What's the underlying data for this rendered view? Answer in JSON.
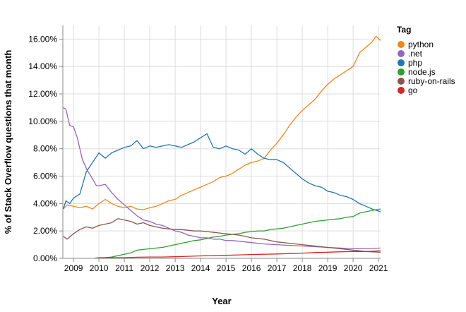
{
  "chart_data": {
    "type": "line",
    "xlabel": "Year",
    "ylabel": "% of Stack Overflow questions that month",
    "x_ticks": [
      "2009",
      "2010",
      "2011",
      "2012",
      "2013",
      "2014",
      "2015",
      "2016",
      "2017",
      "2018",
      "2019",
      "2020",
      "2021"
    ],
    "y_ticks": [
      "0.00%",
      "2.00%",
      "4.00%",
      "6.00%",
      "8.00%",
      "10.00%",
      "12.00%",
      "14.00%",
      "16.00%"
    ],
    "xlim": [
      2008.58,
      2021.08
    ],
    "ylim": [
      0,
      17
    ],
    "grid": true,
    "legend_title": "Tag",
    "legend_position": "right",
    "series": [
      {
        "name": "python",
        "color": "#f58518",
        "points": [
          [
            2008.6,
            3.6
          ],
          [
            2008.75,
            3.9
          ],
          [
            2009.0,
            3.8
          ],
          [
            2009.25,
            3.7
          ],
          [
            2009.5,
            3.8
          ],
          [
            2009.75,
            3.6
          ],
          [
            2010.0,
            4.0
          ],
          [
            2010.25,
            4.3
          ],
          [
            2010.5,
            4.0
          ],
          [
            2010.75,
            3.8
          ],
          [
            2011.0,
            3.7
          ],
          [
            2011.25,
            3.8
          ],
          [
            2011.5,
            3.6
          ],
          [
            2011.75,
            3.55
          ],
          [
            2012.0,
            3.7
          ],
          [
            2012.25,
            3.8
          ],
          [
            2012.5,
            4.0
          ],
          [
            2012.75,
            4.2
          ],
          [
            2013.0,
            4.3
          ],
          [
            2013.25,
            4.6
          ],
          [
            2013.5,
            4.8
          ],
          [
            2013.75,
            5.0
          ],
          [
            2014.0,
            5.2
          ],
          [
            2014.25,
            5.4
          ],
          [
            2014.5,
            5.6
          ],
          [
            2014.75,
            5.9
          ],
          [
            2015.0,
            6.0
          ],
          [
            2015.25,
            6.2
          ],
          [
            2015.5,
            6.5
          ],
          [
            2015.75,
            6.8
          ],
          [
            2016.0,
            7.0
          ],
          [
            2016.25,
            7.1
          ],
          [
            2016.5,
            7.3
          ],
          [
            2016.75,
            7.9
          ],
          [
            2017.0,
            8.4
          ],
          [
            2017.25,
            9.0
          ],
          [
            2017.5,
            9.7
          ],
          [
            2017.75,
            10.3
          ],
          [
            2018.0,
            10.8
          ],
          [
            2018.25,
            11.2
          ],
          [
            2018.5,
            11.6
          ],
          [
            2018.75,
            12.2
          ],
          [
            2019.0,
            12.7
          ],
          [
            2019.25,
            13.1
          ],
          [
            2019.5,
            13.4
          ],
          [
            2019.75,
            13.7
          ],
          [
            2020.0,
            14.0
          ],
          [
            2020.25,
            15.0
          ],
          [
            2020.5,
            15.4
          ],
          [
            2020.75,
            15.8
          ],
          [
            2020.9,
            16.2
          ],
          [
            2021.08,
            15.9
          ]
        ]
      },
      {
        "name": ".net",
        "color": "#9467bd",
        "points": [
          [
            2008.6,
            11.0
          ],
          [
            2008.7,
            10.9
          ],
          [
            2008.85,
            9.7
          ],
          [
            2009.0,
            9.6
          ],
          [
            2009.15,
            8.8
          ],
          [
            2009.35,
            7.2
          ],
          [
            2009.55,
            6.4
          ],
          [
            2009.75,
            5.8
          ],
          [
            2009.9,
            5.3
          ],
          [
            2010.0,
            5.3
          ],
          [
            2010.25,
            5.4
          ],
          [
            2010.5,
            4.8
          ],
          [
            2010.75,
            4.3
          ],
          [
            2011.0,
            3.9
          ],
          [
            2011.25,
            3.5
          ],
          [
            2011.5,
            3.1
          ],
          [
            2011.75,
            2.8
          ],
          [
            2012.0,
            2.7
          ],
          [
            2012.25,
            2.5
          ],
          [
            2012.5,
            2.4
          ],
          [
            2012.75,
            2.2
          ],
          [
            2013.0,
            2.0
          ],
          [
            2013.25,
            1.9
          ],
          [
            2013.5,
            1.7
          ],
          [
            2013.75,
            1.6
          ],
          [
            2014.0,
            1.5
          ],
          [
            2014.25,
            1.5
          ],
          [
            2014.5,
            1.4
          ],
          [
            2014.75,
            1.4
          ],
          [
            2015.0,
            1.3
          ],
          [
            2015.25,
            1.3
          ],
          [
            2015.5,
            1.25
          ],
          [
            2015.75,
            1.2
          ],
          [
            2016.0,
            1.15
          ],
          [
            2016.5,
            1.05
          ],
          [
            2017.0,
            1.0
          ],
          [
            2017.5,
            0.95
          ],
          [
            2018.0,
            0.9
          ],
          [
            2018.5,
            0.85
          ],
          [
            2019.0,
            0.8
          ],
          [
            2019.5,
            0.75
          ],
          [
            2020.0,
            0.7
          ],
          [
            2020.5,
            0.7
          ],
          [
            2021.08,
            0.75
          ]
        ]
      },
      {
        "name": "php",
        "color": "#1f77b4",
        "points": [
          [
            2008.6,
            3.6
          ],
          [
            2008.7,
            4.2
          ],
          [
            2008.85,
            4.0
          ],
          [
            2009.0,
            4.4
          ],
          [
            2009.25,
            4.7
          ],
          [
            2009.5,
            6.3
          ],
          [
            2009.75,
            7.0
          ],
          [
            2010.0,
            7.7
          ],
          [
            2010.25,
            7.3
          ],
          [
            2010.5,
            7.7
          ],
          [
            2010.75,
            7.9
          ],
          [
            2011.0,
            8.1
          ],
          [
            2011.25,
            8.2
          ],
          [
            2011.5,
            8.6
          ],
          [
            2011.75,
            8.0
          ],
          [
            2012.0,
            8.2
          ],
          [
            2012.25,
            8.1
          ],
          [
            2012.5,
            8.2
          ],
          [
            2012.75,
            8.3
          ],
          [
            2013.0,
            8.2
          ],
          [
            2013.25,
            8.1
          ],
          [
            2013.5,
            8.3
          ],
          [
            2013.75,
            8.5
          ],
          [
            2014.0,
            8.8
          ],
          [
            2014.25,
            9.1
          ],
          [
            2014.4,
            8.5
          ],
          [
            2014.5,
            8.1
          ],
          [
            2014.75,
            8.0
          ],
          [
            2015.0,
            8.2
          ],
          [
            2015.25,
            8.0
          ],
          [
            2015.5,
            7.9
          ],
          [
            2015.75,
            7.6
          ],
          [
            2016.0,
            8.0
          ],
          [
            2016.25,
            7.6
          ],
          [
            2016.5,
            7.3
          ],
          [
            2016.75,
            7.2
          ],
          [
            2017.0,
            7.2
          ],
          [
            2017.25,
            7.0
          ],
          [
            2017.5,
            6.6
          ],
          [
            2017.75,
            6.2
          ],
          [
            2018.0,
            5.8
          ],
          [
            2018.25,
            5.5
          ],
          [
            2018.5,
            5.3
          ],
          [
            2018.75,
            5.2
          ],
          [
            2019.0,
            4.9
          ],
          [
            2019.25,
            4.8
          ],
          [
            2019.5,
            4.6
          ],
          [
            2019.75,
            4.5
          ],
          [
            2020.0,
            4.3
          ],
          [
            2020.25,
            4.0
          ],
          [
            2020.5,
            3.8
          ],
          [
            2020.75,
            3.6
          ],
          [
            2021.08,
            3.4
          ]
        ]
      },
      {
        "name": "node.js",
        "color": "#2ca02c",
        "points": [
          [
            2009.9,
            0.0
          ],
          [
            2010.25,
            0.05
          ],
          [
            2010.5,
            0.1
          ],
          [
            2010.75,
            0.2
          ],
          [
            2011.0,
            0.3
          ],
          [
            2011.25,
            0.4
          ],
          [
            2011.5,
            0.6
          ],
          [
            2011.75,
            0.65
          ],
          [
            2012.0,
            0.7
          ],
          [
            2012.25,
            0.75
          ],
          [
            2012.5,
            0.8
          ],
          [
            2012.75,
            0.9
          ],
          [
            2013.0,
            1.0
          ],
          [
            2013.25,
            1.1
          ],
          [
            2013.5,
            1.2
          ],
          [
            2013.75,
            1.3
          ],
          [
            2014.0,
            1.35
          ],
          [
            2014.25,
            1.45
          ],
          [
            2014.5,
            1.55
          ],
          [
            2014.75,
            1.6
          ],
          [
            2015.0,
            1.7
          ],
          [
            2015.25,
            1.75
          ],
          [
            2015.5,
            1.8
          ],
          [
            2015.75,
            1.9
          ],
          [
            2016.0,
            1.95
          ],
          [
            2016.25,
            2.0
          ],
          [
            2016.5,
            2.0
          ],
          [
            2016.75,
            2.1
          ],
          [
            2017.0,
            2.15
          ],
          [
            2017.25,
            2.2
          ],
          [
            2017.5,
            2.3
          ],
          [
            2017.75,
            2.4
          ],
          [
            2018.0,
            2.5
          ],
          [
            2018.25,
            2.6
          ],
          [
            2018.5,
            2.7
          ],
          [
            2018.75,
            2.75
          ],
          [
            2019.0,
            2.8
          ],
          [
            2019.25,
            2.85
          ],
          [
            2019.5,
            2.9
          ],
          [
            2019.75,
            3.0
          ],
          [
            2020.0,
            3.05
          ],
          [
            2020.25,
            3.3
          ],
          [
            2020.5,
            3.4
          ],
          [
            2020.75,
            3.5
          ],
          [
            2021.08,
            3.6
          ]
        ]
      },
      {
        "name": "ruby-on-rails",
        "color": "#8c564b",
        "points": [
          [
            2008.6,
            1.6
          ],
          [
            2008.75,
            1.4
          ],
          [
            2009.0,
            1.8
          ],
          [
            2009.25,
            2.1
          ],
          [
            2009.5,
            2.3
          ],
          [
            2009.75,
            2.2
          ],
          [
            2010.0,
            2.4
          ],
          [
            2010.25,
            2.5
          ],
          [
            2010.5,
            2.6
          ],
          [
            2010.75,
            2.9
          ],
          [
            2011.0,
            2.8
          ],
          [
            2011.25,
            2.7
          ],
          [
            2011.5,
            2.5
          ],
          [
            2011.75,
            2.6
          ],
          [
            2012.0,
            2.4
          ],
          [
            2012.25,
            2.3
          ],
          [
            2012.5,
            2.2
          ],
          [
            2012.75,
            2.15
          ],
          [
            2013.0,
            2.1
          ],
          [
            2013.25,
            2.1
          ],
          [
            2013.5,
            2.05
          ],
          [
            2013.75,
            2.0
          ],
          [
            2014.0,
            2.0
          ],
          [
            2014.25,
            1.95
          ],
          [
            2014.5,
            1.9
          ],
          [
            2014.75,
            1.85
          ],
          [
            2015.0,
            1.8
          ],
          [
            2015.25,
            1.75
          ],
          [
            2015.5,
            1.7
          ],
          [
            2015.75,
            1.6
          ],
          [
            2016.0,
            1.5
          ],
          [
            2016.25,
            1.45
          ],
          [
            2016.5,
            1.4
          ],
          [
            2016.75,
            1.3
          ],
          [
            2017.0,
            1.2
          ],
          [
            2017.5,
            1.1
          ],
          [
            2018.0,
            1.0
          ],
          [
            2018.5,
            0.9
          ],
          [
            2019.0,
            0.8
          ],
          [
            2019.5,
            0.7
          ],
          [
            2020.0,
            0.6
          ],
          [
            2020.5,
            0.5
          ],
          [
            2021.08,
            0.45
          ]
        ]
      },
      {
        "name": "go",
        "color": "#d62728",
        "points": [
          [
            2009.8,
            0.0
          ],
          [
            2010.0,
            0.05
          ],
          [
            2010.5,
            0.05
          ],
          [
            2011.0,
            0.05
          ],
          [
            2011.5,
            0.08
          ],
          [
            2012.0,
            0.1
          ],
          [
            2012.5,
            0.1
          ],
          [
            2013.0,
            0.12
          ],
          [
            2013.5,
            0.15
          ],
          [
            2014.0,
            0.18
          ],
          [
            2014.5,
            0.2
          ],
          [
            2015.0,
            0.22
          ],
          [
            2015.5,
            0.25
          ],
          [
            2016.0,
            0.28
          ],
          [
            2016.5,
            0.3
          ],
          [
            2017.0,
            0.32
          ],
          [
            2017.5,
            0.35
          ],
          [
            2018.0,
            0.38
          ],
          [
            2018.5,
            0.42
          ],
          [
            2019.0,
            0.45
          ],
          [
            2019.5,
            0.48
          ],
          [
            2020.0,
            0.5
          ],
          [
            2020.5,
            0.5
          ],
          [
            2021.08,
            0.55
          ]
        ]
      }
    ]
  }
}
